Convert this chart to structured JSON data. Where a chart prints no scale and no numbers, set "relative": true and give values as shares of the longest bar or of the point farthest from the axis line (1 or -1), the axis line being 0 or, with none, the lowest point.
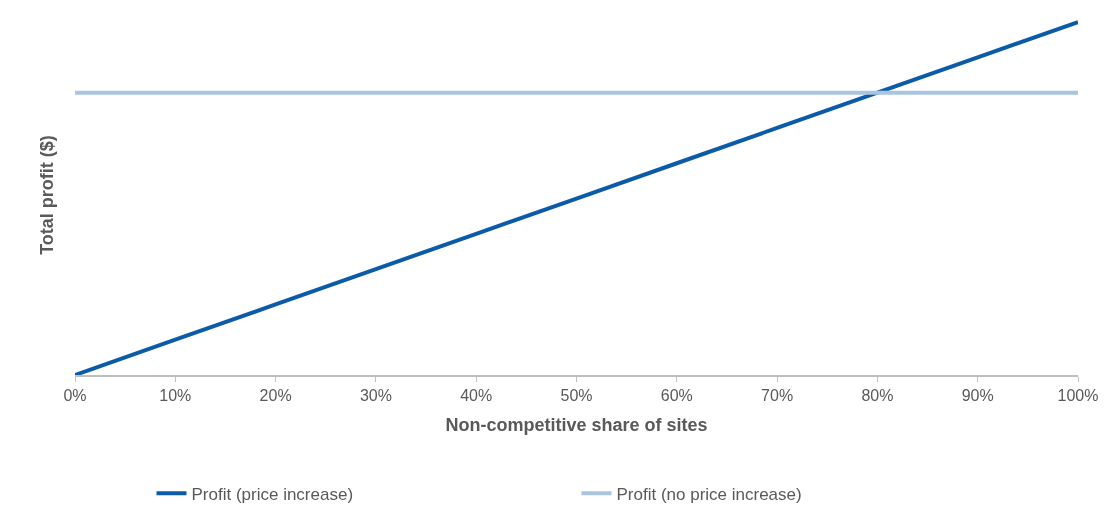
{
  "chart_data": {
    "type": "line",
    "relative": true,
    "xlabel": "Non-competitive share of sites",
    "ylabel": "Total profit ($)",
    "x": [
      0,
      10,
      20,
      30,
      40,
      50,
      60,
      70,
      80,
      90,
      100
    ],
    "xlim": [
      0,
      100
    ],
    "xticks": [
      {
        "value": 0,
        "label": "0%"
      },
      {
        "value": 10,
        "label": "10%"
      },
      {
        "value": 20,
        "label": "20%"
      },
      {
        "value": 30,
        "label": "30%"
      },
      {
        "value": 40,
        "label": "40%"
      },
      {
        "value": 50,
        "label": "50%"
      },
      {
        "value": 60,
        "label": "60%"
      },
      {
        "value": 70,
        "label": "70%"
      },
      {
        "value": 80,
        "label": "80%"
      },
      {
        "value": 90,
        "label": "90%"
      },
      {
        "value": 100,
        "label": "100%"
      }
    ],
    "series": [
      {
        "name": "Profit (price increase)",
        "color": "#0b5ba8",
        "values": [
          0,
          0.1,
          0.2,
          0.3,
          0.4,
          0.5,
          0.6,
          0.7,
          0.8,
          0.9,
          1
        ]
      },
      {
        "name": "Profit (no price increase)",
        "color": "#a9c3e0",
        "values": [
          0.8,
          0.8,
          0.8,
          0.8,
          0.8,
          0.8,
          0.8,
          0.8,
          0.8,
          0.8,
          0.8
        ]
      }
    ],
    "legend": "bottom",
    "marker": "none",
    "line_style": "solid"
  }
}
